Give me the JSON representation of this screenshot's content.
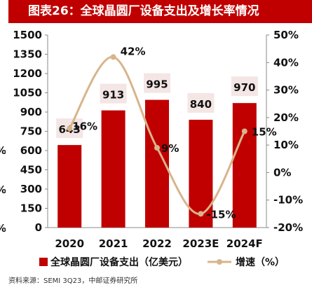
{
  "title": "图表26：全球晶圆厂设备支出及增长率情况",
  "source": "资料来源：SEMI 3Q23，中邮证券研究所",
  "clipped_left_labels": [
    "%",
    "%",
    "%"
  ],
  "colors": {
    "title_bg": "#c00000",
    "bar": "#c00000",
    "line": "#d8b48c",
    "label_box": "#f3e6e4"
  },
  "chart_data": {
    "type": "bar",
    "categories": [
      "2020",
      "2021",
      "2022",
      "2023E",
      "2024F"
    ],
    "series": [
      {
        "name": "全球晶圆厂设备支出（亿美元）",
        "type": "bar",
        "axis": "left",
        "values": [
          643,
          913,
          995,
          840,
          970
        ]
      },
      {
        "name": "增速（%）",
        "type": "line",
        "axis": "right",
        "values": [
          16,
          42,
          9,
          -15,
          15
        ]
      }
    ],
    "value_labels": [
      "643",
      "913",
      "995",
      "840",
      "970"
    ],
    "growth_labels": [
      "16%",
      "42%",
      "9%",
      "-15%",
      "15%"
    ],
    "y_left": {
      "min": 0,
      "max": 1500,
      "ticks": [
        "0",
        "150",
        "300",
        "450",
        "600",
        "750",
        "900",
        "1050",
        "1200",
        "1350",
        "1500"
      ]
    },
    "y_right": {
      "min": -20,
      "max": 50,
      "ticks": [
        "-20%",
        "-10%",
        "0%",
        "10%",
        "20%",
        "30%",
        "40%",
        "50%"
      ]
    },
    "legend": {
      "position": "bottom",
      "items": [
        "全球晶圆厂设备支出（亿美元）",
        "增速（%）"
      ]
    },
    "grid": false
  }
}
